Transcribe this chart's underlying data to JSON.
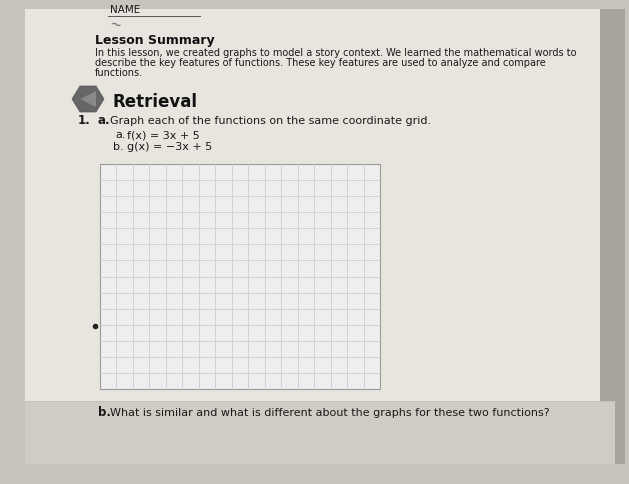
{
  "bg_color": "#c8c4bc",
  "page_color": "#e8e5df",
  "name_label": "NAME",
  "lesson_summary_title": "Lesson Summary",
  "lesson_summary_body_1": "In this lesson, we created graphs to model a story context. We learned the mathematical words to",
  "lesson_summary_body_2": "describe the key features of functions. These key features are used to analyze and compare",
  "lesson_summary_body_3": "functions.",
  "retrieval_title": "Retrieval",
  "q1_number": "1.",
  "q1_a_label": "a.",
  "q1_a_text": "Graph each of the functions on the same coordinate grid.",
  "func_a_label": "a.",
  "func_a_text": "f(x) = 3x + 5",
  "func_b_label": "b.",
  "func_b_text": "g(x) = −3x + 5",
  "q1_b_label": "b.",
  "q1_b_text": "What is similar and what is different about the graphs for these two functions?",
  "grid_rows": 14,
  "grid_cols": 17,
  "grid_line_color": "#c0c8cc",
  "grid_bg": "#eeeeee",
  "grid_border": "#999999",
  "dot_color": "#222222",
  "text_color": "#1a1a1a",
  "bold_color": "#111111",
  "icon_color": "#666666",
  "icon_arrow_color": "#444444",
  "bottom_bar_color": "#d0ccc4",
  "name_underline_color": "#555555",
  "squiggle_color": "#666666"
}
